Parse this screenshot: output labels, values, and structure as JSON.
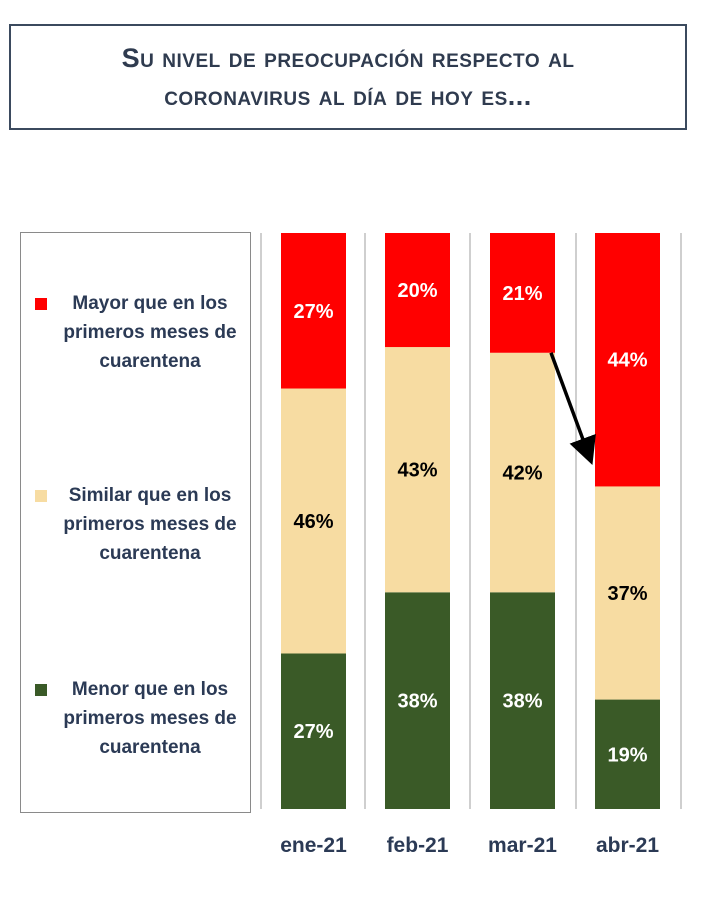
{
  "title": {
    "line1": "Su nivel de preocupación respecto al",
    "line2": "coronavirus al día de hoy es..."
  },
  "legend": [
    {
      "key": "mayor",
      "color": "#ff0000",
      "lines": [
        "Mayor que en los",
        "primeros meses de",
        "cuarentena"
      ]
    },
    {
      "key": "similar",
      "color": "#f7dca2",
      "lines": [
        "Similar que en los",
        "primeros meses de",
        "cuarentena"
      ]
    },
    {
      "key": "menor",
      "color": "#3a5a27",
      "lines": [
        "Menor que en los",
        "primeros meses de",
        "cuarentena"
      ]
    }
  ],
  "chart_data": {
    "type": "bar",
    "stacked": true,
    "normalized": true,
    "categories": [
      "ene-21",
      "feb-21",
      "mar-21",
      "abr-21"
    ],
    "series": [
      {
        "name": "Menor que en los primeros meses de cuarentena",
        "color": "#3a5a27",
        "label_color": "#ffffff",
        "values": [
          27,
          38,
          38,
          19
        ],
        "labels": [
          "27%",
          "38%",
          "38%",
          "19%"
        ]
      },
      {
        "name": "Similar que en los primeros meses de cuarentena",
        "color": "#f7dca2",
        "label_color": "#000000",
        "values": [
          46,
          43,
          42,
          37
        ],
        "labels": [
          "46%",
          "43%",
          "42%",
          "37%"
        ]
      },
      {
        "name": "Mayor que en los primeros meses de cuarentena",
        "color": "#ff0000",
        "label_color": "#ffffff",
        "values": [
          27,
          20,
          21,
          44
        ],
        "labels": [
          "27%",
          "20%",
          "21%",
          "44%"
        ]
      }
    ],
    "annotation": {
      "type": "arrow",
      "from_category": "mar-21",
      "to_category": "abr-21"
    },
    "legend_position": "left",
    "grid": false
  }
}
